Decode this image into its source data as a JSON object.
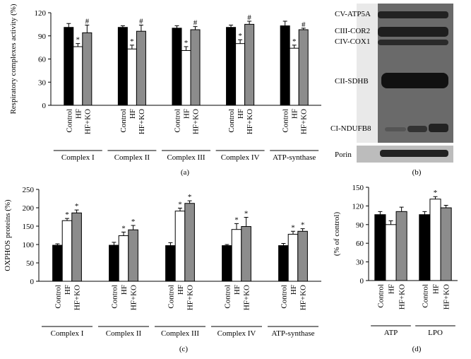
{
  "chart_data": [
    {
      "type": "bar",
      "panel_label": "(a)",
      "y_label": "Respiratory complexes activity (%)",
      "categories": [
        "Complex I",
        "Complex II",
        "Complex III",
        "Complex IV",
        "ATP-synthase"
      ],
      "series": [
        {
          "name": "Control",
          "color": "#000000",
          "values": [
            101,
            101,
            100,
            101,
            103
          ],
          "errors": [
            5,
            2,
            3,
            3,
            6
          ],
          "annotations": [
            null,
            null,
            null,
            null,
            null
          ]
        },
        {
          "name": "HF",
          "color": "#ffffff",
          "values": [
            76,
            73,
            71,
            80,
            74
          ],
          "errors": [
            4,
            5,
            5,
            5,
            4
          ],
          "annotations": [
            "*",
            "*",
            "*",
            "*",
            "*"
          ]
        },
        {
          "name": "HF+KO",
          "color": "#8c8c8c",
          "values": [
            94,
            96,
            98,
            105,
            98
          ],
          "errors": [
            10,
            8,
            4,
            4,
            2
          ],
          "annotations": [
            "#",
            "#",
            "#",
            "#",
            "#"
          ]
        }
      ],
      "ylim": [
        0,
        120
      ],
      "yticks": [
        0,
        30,
        60,
        90,
        120
      ]
    },
    {
      "type": "bar",
      "panel_label": "(c)",
      "y_label": "OXPHOS proteins (%)",
      "categories": [
        "Complex I",
        "Complex II",
        "Complex III",
        "Complex IV",
        "ATP-synthase"
      ],
      "series": [
        {
          "name": "Control",
          "color": "#000000",
          "values": [
            98,
            98,
            97,
            97,
            97
          ],
          "errors": [
            4,
            8,
            8,
            3,
            6
          ],
          "annotations": [
            null,
            null,
            null,
            null,
            null
          ]
        },
        {
          "name": "HF",
          "color": "#ffffff",
          "values": [
            165,
            124,
            191,
            141,
            128
          ],
          "errors": [
            6,
            10,
            8,
            16,
            8
          ],
          "annotations": [
            "*",
            "*",
            "*",
            "*",
            "*"
          ]
        },
        {
          "name": "HF+KO",
          "color": "#8c8c8c",
          "values": [
            186,
            140,
            212,
            149,
            136
          ],
          "errors": [
            8,
            12,
            7,
            25,
            7
          ],
          "annotations": [
            "*",
            "*",
            "*",
            "*",
            "*"
          ]
        }
      ],
      "ylim": [
        0,
        250
      ],
      "yticks": [
        0,
        50,
        100,
        150,
        200,
        250
      ]
    },
    {
      "type": "bar",
      "panel_label": "(d)",
      "y_label": "(% of control)",
      "categories": [
        "ATP",
        "LPO"
      ],
      "series": [
        {
          "name": "Control",
          "color": "#000000",
          "values": [
            106,
            106
          ],
          "errors": [
            5,
            5
          ],
          "annotations": [
            null,
            null
          ]
        },
        {
          "name": "HF",
          "color": "#ffffff",
          "values": [
            90,
            131
          ],
          "errors": [
            6,
            4
          ],
          "annotations": [
            null,
            "*"
          ]
        },
        {
          "name": "HF+KO",
          "color": "#8c8c8c",
          "values": [
            111,
            117
          ],
          "errors": [
            7,
            4
          ],
          "annotations": [
            null,
            null
          ]
        }
      ],
      "ylim": [
        0,
        150
      ],
      "yticks": [
        0,
        30,
        60,
        90,
        120,
        150
      ]
    }
  ],
  "blot": {
    "panel_label": "(b)",
    "labels": [
      "CV-ATP5A",
      "CIII-COR2",
      "CIV-COX1",
      "CII-SDHB",
      "CI-NDUFB8",
      "Porin"
    ]
  }
}
